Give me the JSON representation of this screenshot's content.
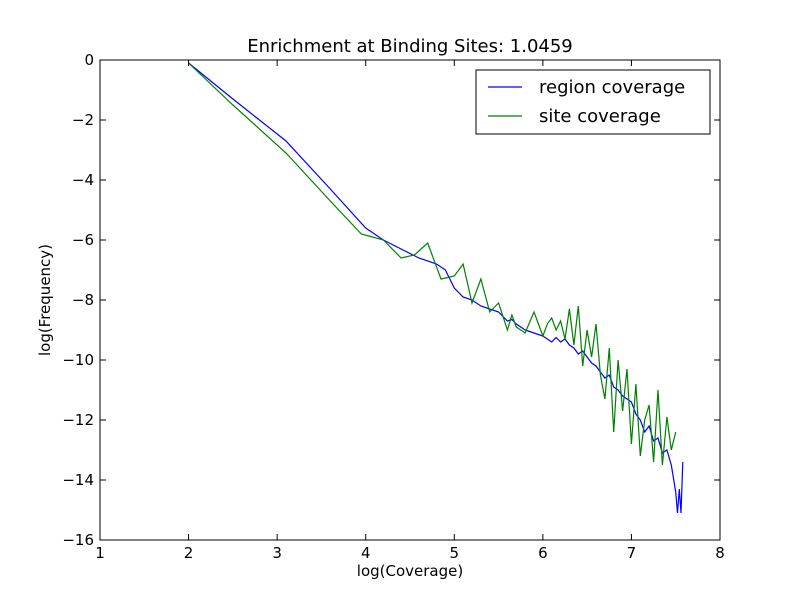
{
  "chart_data": {
    "type": "line",
    "title": "Enrichment at Binding Sites: 1.0459",
    "xlabel": "log(Coverage)",
    "ylabel": "log(Frequency)",
    "xlim": [
      1,
      8
    ],
    "ylim": [
      -16,
      0
    ],
    "xticks": [
      1,
      2,
      3,
      4,
      5,
      6,
      7,
      8
    ],
    "yticks": [
      0,
      -2,
      -4,
      -6,
      -8,
      -10,
      -12,
      -14,
      -16
    ],
    "grid": false,
    "legend_position": "top-right",
    "series": [
      {
        "name": "region coverage",
        "color": "#0000ff",
        "x": [
          2.0,
          2.5,
          3.1,
          3.6,
          4.0,
          4.2,
          4.4,
          4.6,
          4.8,
          4.9,
          5.0,
          5.1,
          5.2,
          5.3,
          5.4,
          5.5,
          5.6,
          5.65,
          5.7,
          5.8,
          5.9,
          6.0,
          6.05,
          6.1,
          6.15,
          6.2,
          6.25,
          6.3,
          6.35,
          6.4,
          6.45,
          6.5,
          6.55,
          6.6,
          6.65,
          6.7,
          6.75,
          6.8,
          6.85,
          6.9,
          6.95,
          7.0,
          7.05,
          7.1,
          7.15,
          7.2,
          7.25,
          7.3,
          7.35,
          7.4,
          7.45,
          7.5,
          7.52,
          7.54,
          7.56,
          7.58
        ],
        "y": [
          -0.1,
          -1.3,
          -2.7,
          -4.3,
          -5.6,
          -6.0,
          -6.3,
          -6.6,
          -6.8,
          -7.0,
          -7.6,
          -7.9,
          -8.0,
          -8.2,
          -8.3,
          -8.4,
          -8.7,
          -8.65,
          -8.8,
          -9.0,
          -9.1,
          -9.2,
          -9.3,
          -9.4,
          -9.25,
          -9.4,
          -9.3,
          -9.5,
          -9.6,
          -9.8,
          -9.7,
          -9.9,
          -10.1,
          -10.2,
          -10.4,
          -10.6,
          -10.5,
          -10.9,
          -11.0,
          -11.2,
          -11.3,
          -11.4,
          -11.8,
          -12.0,
          -12.4,
          -12.2,
          -12.7,
          -12.6,
          -13.1,
          -13.0,
          -13.5,
          -14.4,
          -15.1,
          -14.3,
          -15.1,
          -13.4
        ]
      },
      {
        "name": "site coverage",
        "color": "#008000",
        "x": [
          2.0,
          2.5,
          3.1,
          3.6,
          3.95,
          4.2,
          4.4,
          4.55,
          4.7,
          4.85,
          5.0,
          5.1,
          5.2,
          5.3,
          5.4,
          5.5,
          5.6,
          5.65,
          5.7,
          5.8,
          5.9,
          6.0,
          6.05,
          6.1,
          6.15,
          6.2,
          6.25,
          6.3,
          6.35,
          6.4,
          6.45,
          6.5,
          6.55,
          6.6,
          6.65,
          6.7,
          6.75,
          6.8,
          6.85,
          6.9,
          6.95,
          7.0,
          7.05,
          7.1,
          7.15,
          7.2,
          7.25,
          7.3,
          7.35,
          7.4,
          7.45,
          7.5
        ],
        "y": [
          -0.1,
          -1.5,
          -3.1,
          -4.7,
          -5.8,
          -6.0,
          -6.6,
          -6.5,
          -6.1,
          -7.3,
          -7.2,
          -6.8,
          -8.1,
          -7.3,
          -8.4,
          -8.1,
          -9.0,
          -8.5,
          -8.9,
          -9.1,
          -8.4,
          -9.2,
          -8.8,
          -8.6,
          -9.0,
          -8.7,
          -9.3,
          -8.3,
          -9.5,
          -8.2,
          -10.2,
          -9.0,
          -9.9,
          -8.8,
          -10.5,
          -11.3,
          -9.6,
          -12.4,
          -10.0,
          -11.7,
          -10.3,
          -12.8,
          -10.8,
          -13.2,
          -12.0,
          -11.5,
          -13.4,
          -11.0,
          -13.5,
          -11.9,
          -13.0,
          -12.4
        ]
      }
    ]
  }
}
